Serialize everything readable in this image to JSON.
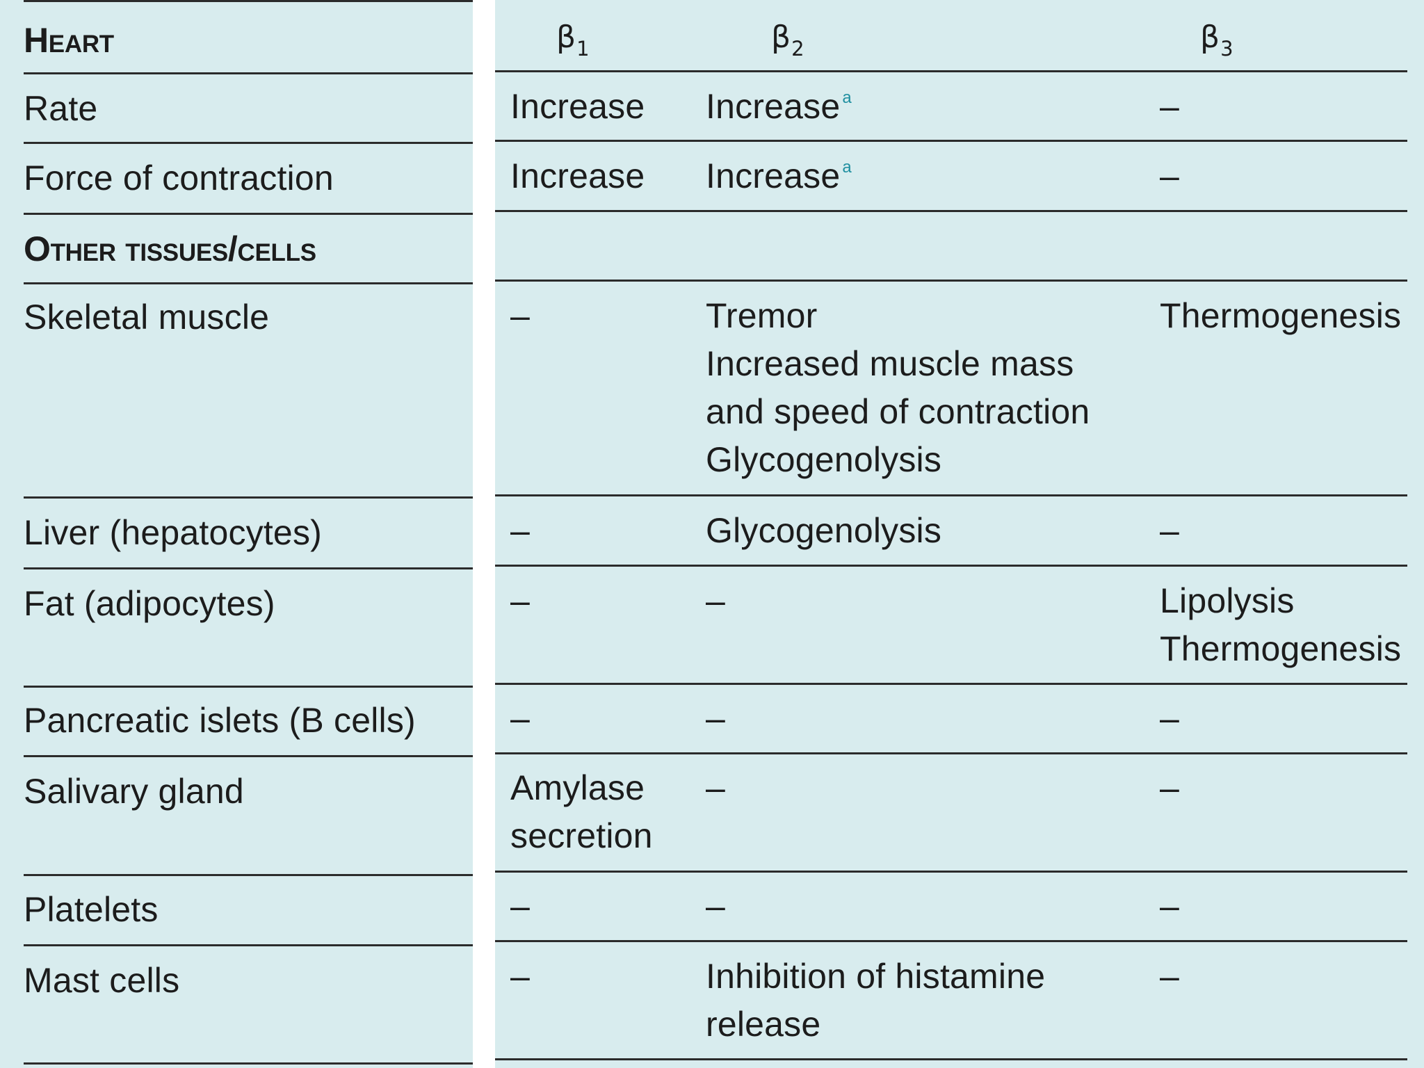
{
  "table": {
    "col1": {
      "symbol": "β",
      "sub": "1"
    },
    "col2": {
      "symbol": "β",
      "sub": "2"
    },
    "col3": {
      "symbol": "β",
      "sub": "3"
    },
    "dash": "–",
    "footnote_mark": "a",
    "sections": {
      "heart": "Heart",
      "other": "Other tissues/cells"
    },
    "rows": {
      "rate": {
        "label": "Rate",
        "b1": "Increase",
        "b2": "Increase",
        "b3": "–"
      },
      "force": {
        "label": "Force of contraction",
        "b1": "Increase",
        "b2": "Increase",
        "b3": "–"
      },
      "skeletal": {
        "label": "Skeletal muscle",
        "b1": "–",
        "b2": [
          "Tremor",
          "Increased muscle mass",
          "and speed of contraction",
          "Glycogenolysis"
        ],
        "b3": "Thermogenesis"
      },
      "liver": {
        "label": "Liver (hepatocytes)",
        "b1": "–",
        "b2": "Glycogenolysis",
        "b3": "–"
      },
      "fat": {
        "label": "Fat (adipocytes)",
        "b1": "–",
        "b2": "–",
        "b3": [
          "Lipolysis",
          "Thermogenesis"
        ]
      },
      "pancreas": {
        "label": "Pancreatic islets (B cells)",
        "b1": "–",
        "b2": "–",
        "b3": "–"
      },
      "salivary": {
        "label": "Salivary gland",
        "b1": [
          "Amylase",
          "secretion"
        ],
        "b2": "–",
        "b3": "–"
      },
      "platelets": {
        "label": "Platelets",
        "b1": "–",
        "b2": "–",
        "b3": "–"
      },
      "mast": {
        "label": "Mast cells",
        "b1": "–",
        "b2": [
          "Inhibition of histamine",
          "release"
        ],
        "b3": "–"
      }
    }
  }
}
